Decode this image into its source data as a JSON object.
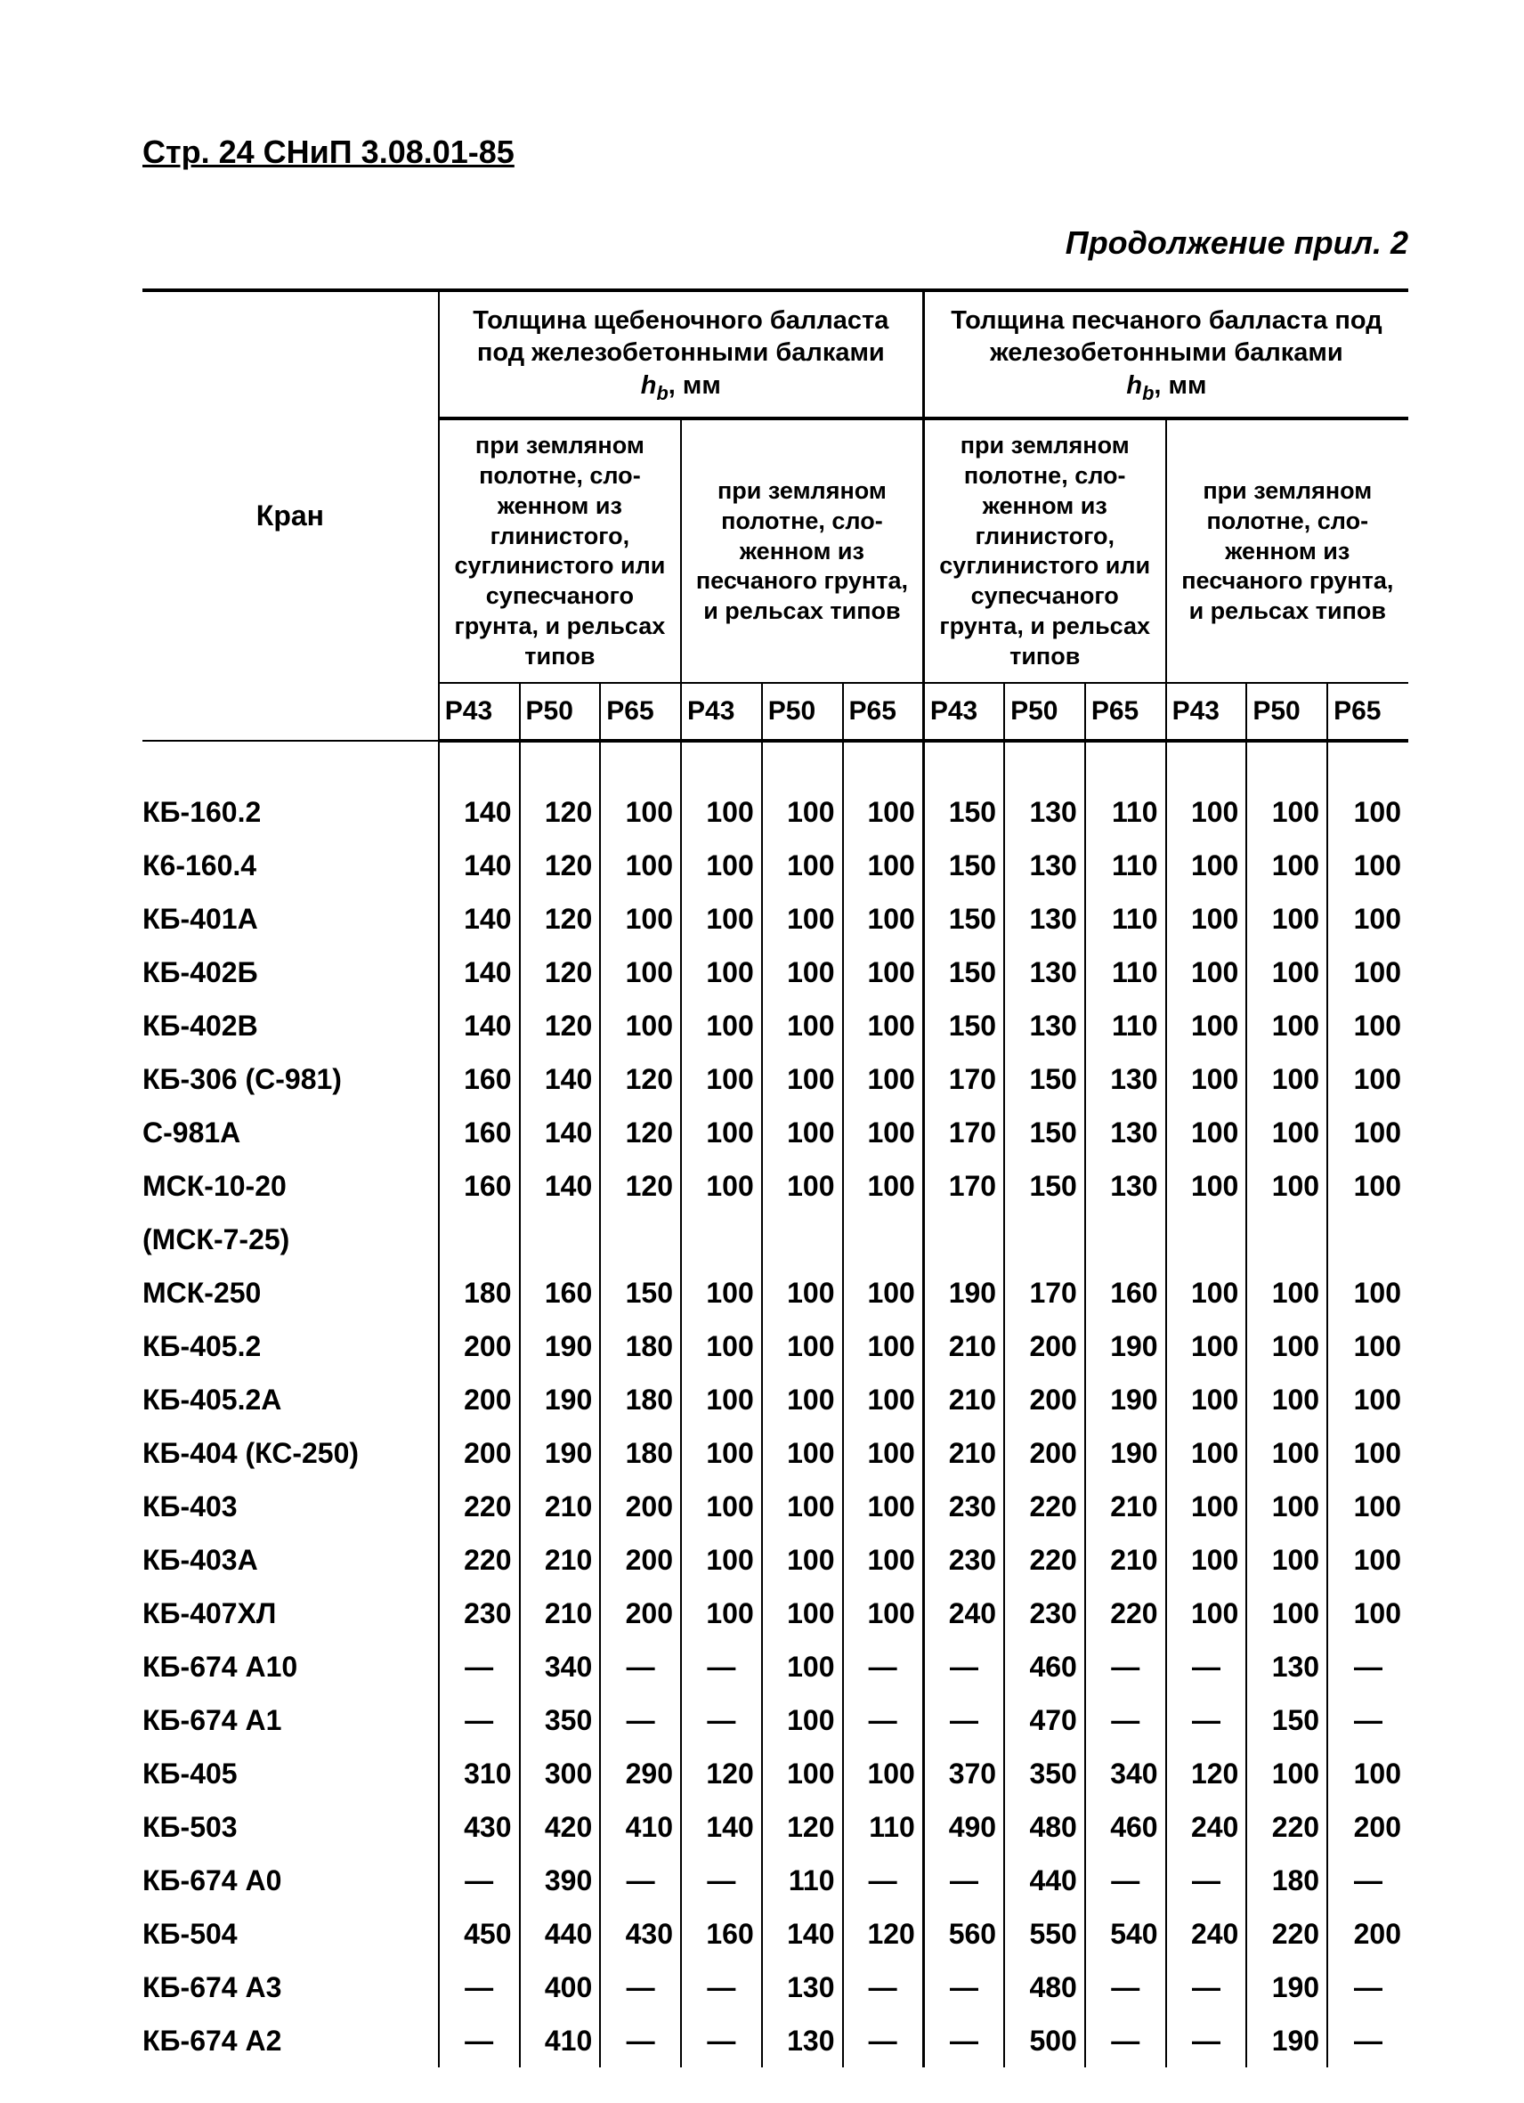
{
  "text_color": "#000000",
  "background_color": "#ffffff",
  "border_color": "#000000",
  "font_family": "Arial",
  "header_line": "Стр. 24 СНиП 3.08.01-85",
  "continuation": "Продолжение прил. 2",
  "table": {
    "crane_header": "Кран",
    "top_group_left": "Толщина щебеночного балласта под железобетонными балками",
    "top_group_right": "Толщина песчаного балласта под железобетонными балками",
    "hb_label_prefix": "h",
    "hb_label_sub": "b",
    "hb_label_unit": ", мм",
    "sub_clay": "при земляном полотне, сло­женном из глинистого, суглинистого или супесча­ного грунта, и рельсах типов",
    "sub_sand": "при земляном полотне, сло­женном из песчаного грунта, и рельсах типов",
    "rail_labels": [
      "Р43",
      "Р50",
      "Р65"
    ],
    "rows": [
      {
        "name": "КБ-160.2",
        "v": [
          140,
          120,
          100,
          100,
          100,
          100,
          150,
          130,
          110,
          100,
          100,
          100
        ]
      },
      {
        "name": "К6-160.4",
        "v": [
          140,
          120,
          100,
          100,
          100,
          100,
          150,
          130,
          110,
          100,
          100,
          100
        ]
      },
      {
        "name": "КБ-401А",
        "v": [
          140,
          120,
          100,
          100,
          100,
          100,
          150,
          130,
          110,
          100,
          100,
          100
        ]
      },
      {
        "name": "КБ-402Б",
        "v": [
          140,
          120,
          100,
          100,
          100,
          100,
          150,
          130,
          110,
          100,
          100,
          100
        ]
      },
      {
        "name": "КБ-402В",
        "v": [
          140,
          120,
          100,
          100,
          100,
          100,
          150,
          130,
          110,
          100,
          100,
          100
        ]
      },
      {
        "name": "КБ-306 (С-981)",
        "v": [
          160,
          140,
          120,
          100,
          100,
          100,
          170,
          150,
          130,
          100,
          100,
          100
        ]
      },
      {
        "name": "С-981А",
        "v": [
          160,
          140,
          120,
          100,
          100,
          100,
          170,
          150,
          130,
          100,
          100,
          100
        ]
      },
      {
        "name": "МСК-10-20",
        "v": [
          160,
          140,
          120,
          100,
          100,
          100,
          170,
          150,
          130,
          100,
          100,
          100
        ]
      },
      {
        "name": "(МСК-7-25)",
        "v": [
          null,
          null,
          null,
          null,
          null,
          null,
          null,
          null,
          null,
          null,
          null,
          null
        ],
        "blank": true
      },
      {
        "name": "МСК-250",
        "v": [
          180,
          160,
          150,
          100,
          100,
          100,
          190,
          170,
          160,
          100,
          100,
          100
        ]
      },
      {
        "name": "КБ-405.2",
        "v": [
          200,
          190,
          180,
          100,
          100,
          100,
          210,
          200,
          190,
          100,
          100,
          100
        ]
      },
      {
        "name": "КБ-405.2А",
        "v": [
          200,
          190,
          180,
          100,
          100,
          100,
          210,
          200,
          190,
          100,
          100,
          100
        ]
      },
      {
        "name": "КБ-404 (КС-250)",
        "v": [
          200,
          190,
          180,
          100,
          100,
          100,
          210,
          200,
          190,
          100,
          100,
          100
        ]
      },
      {
        "name": "КБ-403",
        "v": [
          220,
          210,
          200,
          100,
          100,
          100,
          230,
          220,
          210,
          100,
          100,
          100
        ]
      },
      {
        "name": "КБ-403А",
        "v": [
          220,
          210,
          200,
          100,
          100,
          100,
          230,
          220,
          210,
          100,
          100,
          100
        ]
      },
      {
        "name": "КБ-407ХЛ",
        "v": [
          230,
          210,
          200,
          100,
          100,
          100,
          240,
          230,
          220,
          100,
          100,
          100
        ]
      },
      {
        "name": "КБ-674 А10",
        "v": [
          null,
          340,
          null,
          null,
          100,
          null,
          null,
          460,
          null,
          null,
          130,
          null
        ]
      },
      {
        "name": "КБ-674 А1",
        "v": [
          null,
          350,
          null,
          null,
          100,
          null,
          null,
          470,
          null,
          null,
          150,
          null
        ]
      },
      {
        "name": "КБ-405",
        "v": [
          310,
          300,
          290,
          120,
          100,
          100,
          370,
          350,
          340,
          120,
          100,
          100
        ]
      },
      {
        "name": "КБ-503",
        "v": [
          430,
          420,
          410,
          140,
          120,
          110,
          490,
          480,
          460,
          240,
          220,
          200
        ]
      },
      {
        "name": "КБ-674 А0",
        "v": [
          null,
          390,
          null,
          null,
          110,
          null,
          null,
          440,
          null,
          null,
          180,
          null
        ]
      },
      {
        "name": "КБ-504",
        "v": [
          450,
          440,
          430,
          160,
          140,
          120,
          560,
          550,
          540,
          240,
          220,
          200
        ]
      },
      {
        "name": "КБ-674 А3",
        "v": [
          null,
          400,
          null,
          null,
          130,
          null,
          null,
          480,
          null,
          null,
          190,
          null
        ]
      },
      {
        "name": "КБ-674 А2",
        "v": [
          null,
          410,
          null,
          null,
          130,
          null,
          null,
          500,
          null,
          null,
          190,
          null
        ]
      }
    ]
  }
}
